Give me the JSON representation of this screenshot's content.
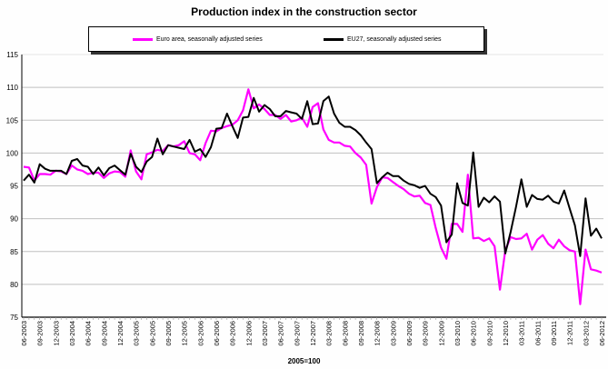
{
  "chart_data": {
    "type": "line",
    "title": "Production index in the construction sector",
    "xlabel": "2005=100",
    "ylabel": "",
    "ylim": [
      75,
      115
    ],
    "yticks": [
      75,
      80,
      85,
      90,
      95,
      100,
      105,
      110,
      115
    ],
    "grid": true,
    "legend_placement": "top",
    "x_start": "06-2003",
    "x_end": "06-2012",
    "x_frequency": "monthly",
    "xtick_labels": [
      "06-2003",
      "09-2003",
      "12-2003",
      "03-2004",
      "06-2004",
      "09-2004",
      "12-2004",
      "03-2005",
      "06-2005",
      "09-2005",
      "12-2005",
      "03-2006",
      "06-2006",
      "09-2006",
      "12-2006",
      "03-2007",
      "06-2007",
      "09-2007",
      "12-2007",
      "03-2008",
      "06-2008",
      "09-2008",
      "12-2008",
      "03-2009",
      "06-2009",
      "09-2009",
      "12-2009",
      "03-2010",
      "06-2010",
      "09-2010",
      "12-2010",
      "03-2011",
      "06-2011",
      "09-2011",
      "12-2011",
      "03-2012",
      "06-2012"
    ],
    "series": [
      {
        "name": "Euro area, seasonally adjusted series",
        "color": "#ff00ff",
        "values": [
          97.9,
          97.8,
          95.8,
          96.8,
          96.8,
          96.7,
          97.3,
          97.2,
          96.8,
          98.1,
          97.5,
          97.3,
          96.8,
          97.0,
          97.0,
          96.2,
          96.9,
          97.2,
          97.1,
          96.4,
          100.4,
          97.2,
          96.0,
          99.8,
          100.1,
          100.5,
          100.3,
          101.2,
          101.0,
          101.2,
          101.8,
          100.0,
          99.8,
          98.9,
          101.5,
          103.4,
          103.3,
          103.8,
          104.1,
          104.3,
          105.0,
          106.5,
          109.7,
          106.8,
          107.4,
          106.7,
          105.8,
          105.8,
          105.2,
          105.8,
          104.8,
          105.0,
          105.4,
          104.0,
          107.0,
          107.6,
          103.6,
          102.0,
          101.6,
          101.6,
          101.1,
          101.0,
          100.0,
          99.3,
          98.2,
          92.3,
          94.8,
          96.3,
          96.2,
          95.6,
          95.0,
          94.5,
          93.8,
          93.4,
          93.5,
          92.4,
          92.1,
          88.6,
          85.6,
          83.9,
          89.2,
          89.2,
          88.0,
          96.7,
          87.0,
          87.1,
          86.6,
          87.0,
          85.8,
          79.2,
          85.2,
          87.2,
          86.9,
          87.0,
          87.7,
          85.3,
          86.8,
          87.5,
          86.2,
          85.5,
          86.8,
          85.8,
          85.2,
          85.0,
          77.0,
          85.3,
          82.3,
          82.1,
          81.8
        ]
      },
      {
        "name": "EU27, seasonally adjusted series",
        "color": "#000000",
        "values": [
          95.8,
          96.7,
          95.5,
          98.3,
          97.6,
          97.3,
          97.3,
          97.3,
          96.8,
          98.8,
          99.1,
          98.1,
          97.9,
          96.8,
          97.8,
          96.6,
          97.7,
          98.1,
          97.4,
          96.7,
          99.9,
          97.9,
          97.1,
          98.7,
          99.4,
          102.2,
          99.8,
          101.2,
          101.0,
          100.8,
          100.6,
          102.0,
          100.2,
          100.6,
          99.4,
          100.9,
          103.7,
          103.8,
          106.0,
          104.1,
          102.3,
          105.4,
          105.5,
          108.4,
          106.3,
          107.3,
          106.7,
          105.6,
          105.6,
          106.4,
          106.2,
          106.0,
          105.2,
          107.9,
          104.4,
          104.5,
          107.9,
          108.6,
          106.0,
          104.6,
          104.0,
          104.0,
          103.5,
          102.7,
          101.6,
          100.6,
          95.4,
          96.3,
          97.0,
          96.5,
          96.5,
          95.8,
          95.3,
          95.1,
          94.7,
          95.0,
          93.8,
          93.3,
          92.0,
          86.4,
          87.6,
          95.4,
          92.4,
          92.0,
          100.1,
          91.8,
          93.2,
          92.5,
          93.4,
          92.6,
          84.7,
          88.0,
          91.8,
          96.0,
          91.8,
          93.6,
          93.0,
          92.9,
          93.5,
          92.6,
          92.3,
          94.3,
          91.6,
          89.0,
          84.3,
          93.1,
          87.4,
          88.5,
          87.0
        ]
      }
    ]
  }
}
